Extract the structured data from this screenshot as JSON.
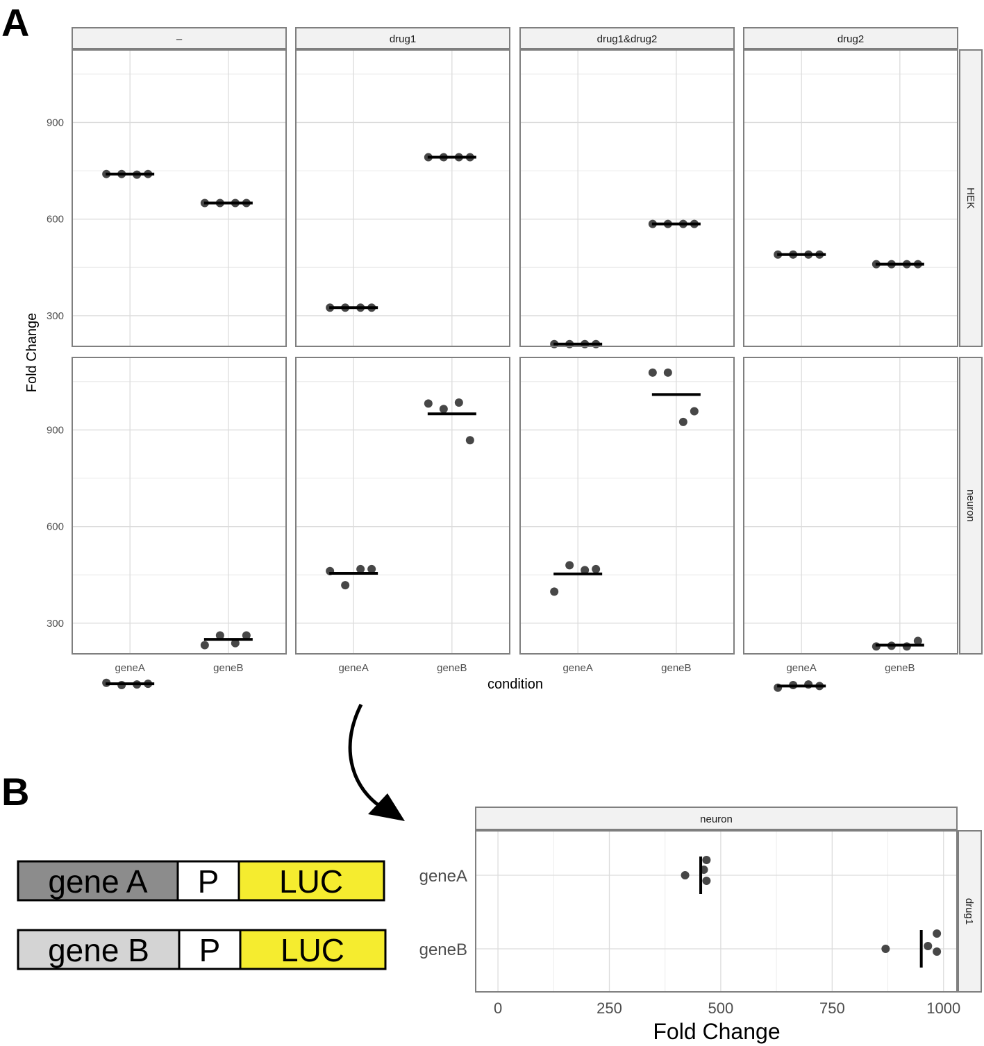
{
  "panel_labels": {
    "a": "A",
    "b": "B"
  },
  "constructs": [
    {
      "gene": "gene A",
      "promoter": "P",
      "reporter": "LUC",
      "gene_color": "#8c8c8c"
    },
    {
      "gene": "gene B",
      "promoter": "P",
      "reporter": "LUC",
      "gene_color": "#d4d4d4"
    }
  ],
  "reporter_color": "#f5ec2f",
  "point_color": "#333333",
  "chart_data": [
    {
      "type": "scatter",
      "xlabel": "condition",
      "ylabel": "Fold Change",
      "categories": [
        "geneA",
        "geneB"
      ],
      "facet_cols": [
        "–",
        "drug1",
        "drug1&drug2",
        "drug2"
      ],
      "facet_rows": [
        "HEK",
        "neuron"
      ],
      "yticks": [
        300,
        600,
        900
      ],
      "ylim": [
        205,
        1125
      ],
      "grid": true,
      "summary": "mean bar",
      "panels": [
        {
          "row": "HEK",
          "col": "–",
          "points": {
            "geneA": [
              740,
              740,
              738,
              740
            ],
            "geneB": [
              650,
              650,
              650,
              650
            ]
          },
          "means": {
            "geneA": 740,
            "geneB": 650
          }
        },
        {
          "row": "HEK",
          "col": "drug1",
          "points": {
            "geneA": [
              325,
              325,
              325,
              325
            ],
            "geneB": [
              792,
              792,
              792,
              792
            ]
          },
          "means": {
            "geneA": 325,
            "geneB": 792
          }
        },
        {
          "row": "HEK",
          "col": "drug1&drug2",
          "points": {
            "geneA": [
              212,
              212,
              212,
              212
            ],
            "geneB": [
              585,
              585,
              585,
              585
            ]
          },
          "means": {
            "geneA": 212,
            "geneB": 585
          }
        },
        {
          "row": "HEK",
          "col": "drug2",
          "points": {
            "geneA": [
              490,
              490,
              490,
              490
            ],
            "geneB": [
              460,
              460,
              460,
              460
            ]
          },
          "means": {
            "geneA": 490,
            "geneB": 460
          }
        },
        {
          "row": "neuron",
          "col": "–",
          "points": {
            "geneA": [
              115,
              108,
              110,
              112
            ],
            "geneB": [
              232,
              262,
              238,
              262
            ]
          },
          "means": {
            "geneA": 112,
            "geneB": 250
          }
        },
        {
          "row": "neuron",
          "col": "drug1",
          "points": {
            "geneA": [
              462,
              418,
              468,
              468
            ],
            "geneB": [
              982,
              965,
              985,
              868
            ]
          },
          "means": {
            "geneA": 455,
            "geneB": 950
          }
        },
        {
          "row": "neuron",
          "col": "drug1&drug2",
          "points": {
            "geneA": [
              398,
              480,
              465,
              468
            ],
            "geneB": [
              1078,
              1078,
              925,
              958
            ]
          },
          "means": {
            "geneA": 453,
            "geneB": 1010
          }
        },
        {
          "row": "neuron",
          "col": "drug2",
          "points": {
            "geneA": [
              100,
              108,
              110,
              105
            ],
            "geneB": [
              228,
              230,
              228,
              245
            ]
          },
          "means": {
            "geneA": 105,
            "geneB": 232
          }
        }
      ]
    },
    {
      "type": "scatter",
      "xlabel": "Fold Change",
      "ylabel": "",
      "categories": [
        "geneA",
        "geneB"
      ],
      "facet_col": "neuron",
      "facet_row": "drug1",
      "xticks": [
        0,
        250,
        500,
        750,
        1000
      ],
      "xlim": [
        -50,
        1030
      ],
      "grid": true,
      "summary": "mean bar",
      "points": {
        "geneA": [
          468,
          462,
          468,
          420
        ],
        "geneB": [
          985,
          965,
          985,
          870
        ]
      },
      "means": {
        "geneA": 455,
        "geneB": 950
      }
    }
  ]
}
